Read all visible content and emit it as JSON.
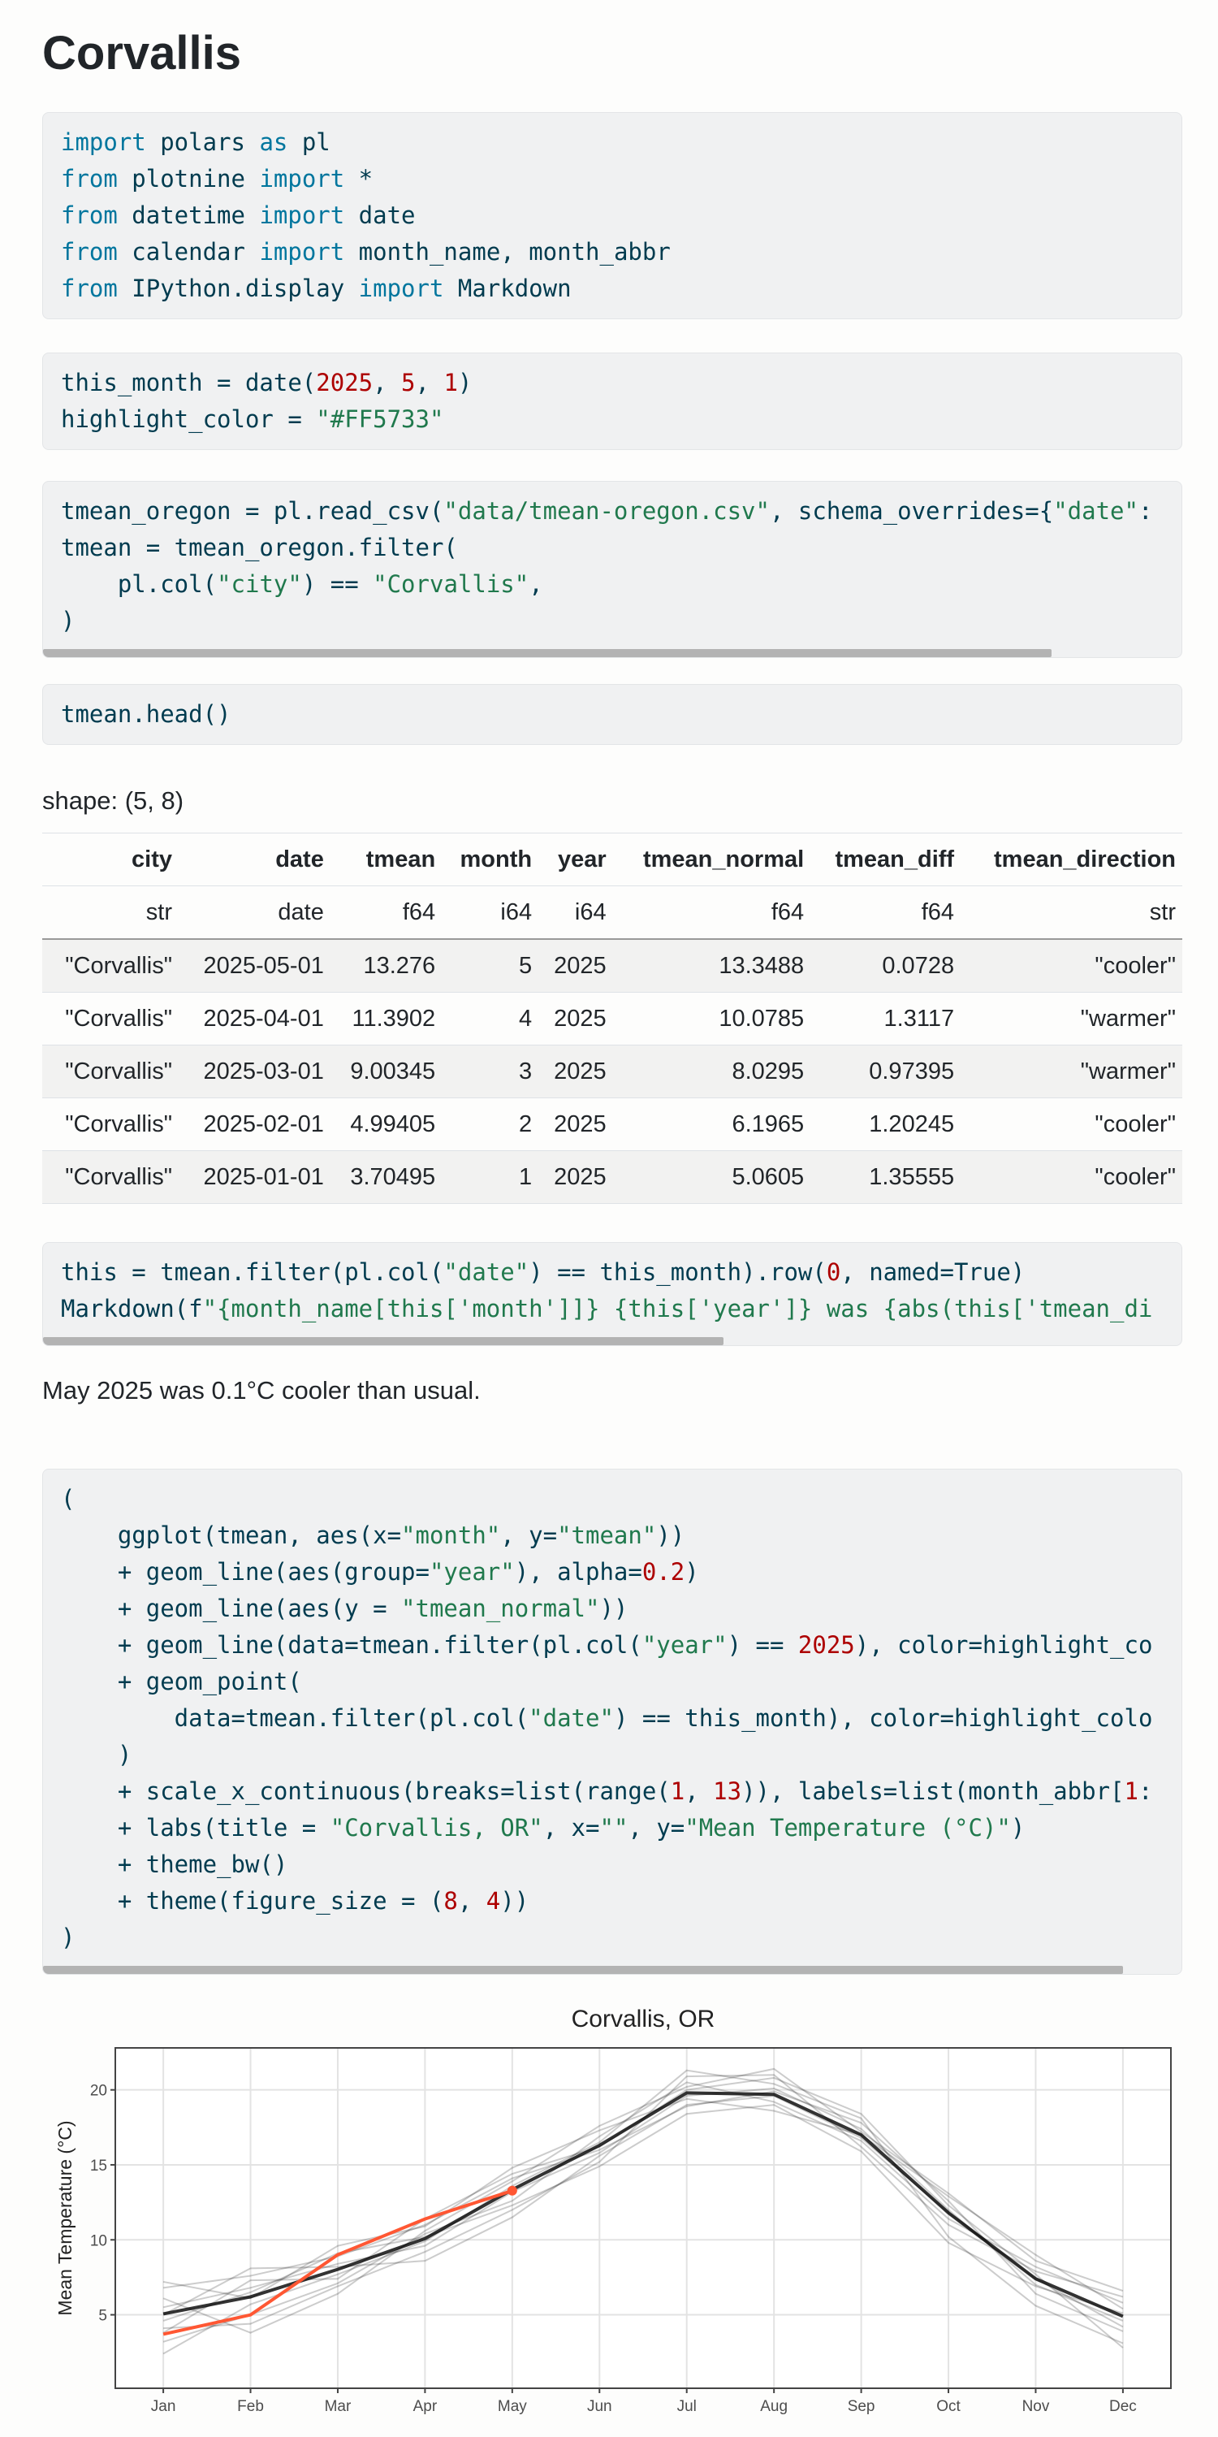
{
  "header": {
    "title": "Corvallis"
  },
  "code_blocks": [
    {
      "lines": [
        "import polars as pl",
        "from plotnine import *",
        "from datetime import date",
        "from calendar import month_name, month_abbr",
        "from IPython.display import Markdown"
      ]
    },
    {
      "lines": [
        "this_month = date(2025, 5, 1)",
        "highlight_color = \"#FF5733\""
      ]
    },
    {
      "lines": [
        "tmean_oregon = pl.read_csv(\"data/tmean-oregon.csv\", schema_overrides={\"date\":",
        "tmean = tmean_oregon.filter(",
        "    pl.col(\"city\") == \"Corvallis\",",
        ")"
      ]
    },
    {
      "lines": [
        "tmean.head()"
      ]
    },
    {
      "lines": [
        "this = tmean.filter(pl.col(\"date\") == this_month).row(0, named=True)",
        "Markdown(f\"{month_name[this['month']]} {this['year']} was {abs(this['tmean_di"
      ]
    },
    {
      "lines": [
        "(",
        "    ggplot(tmean, aes(x=\"month\", y=\"tmean\"))",
        "    + geom_line(aes(group=\"year\"), alpha=0.2)",
        "    + geom_line(aes(y = \"tmean_normal\"))",
        "    + geom_line(data=tmean.filter(pl.col(\"year\") == 2025), color=highlight_co",
        "    + geom_point(",
        "        data=tmean.filter(pl.col(\"date\") == this_month), color=highlight_colo",
        "    )",
        "    + scale_x_continuous(breaks=list(range(1, 13)), labels=list(month_abbr[1:",
        "    + labs(title = \"Corvallis, OR\", x=\"\", y=\"Mean Temperature (°C)\")",
        "    + theme_bw()",
        "    + theme(figure_size = (8, 4))",
        ")"
      ]
    }
  ],
  "table": {
    "shape": "shape: (5, 8)",
    "columns": [
      "city",
      "date",
      "tmean",
      "month",
      "year",
      "tmean_normal",
      "tmean_diff",
      "tmean_direction"
    ],
    "dtypes": [
      "str",
      "date",
      "f64",
      "i64",
      "i64",
      "f64",
      "f64",
      "str"
    ],
    "rows": [
      [
        "\"Corvallis\"",
        "2025-05-01",
        13.276,
        5,
        2025,
        13.3488,
        0.0728,
        "\"cooler\""
      ],
      [
        "\"Corvallis\"",
        "2025-04-01",
        11.3902,
        4,
        2025,
        10.0785,
        1.3117,
        "\"warmer\""
      ],
      [
        "\"Corvallis\"",
        "2025-03-01",
        9.00345,
        3,
        2025,
        8.0295,
        0.97395,
        "\"warmer\""
      ],
      [
        "\"Corvallis\"",
        "2025-02-01",
        4.99405,
        2,
        2025,
        6.1965,
        1.20245,
        "\"cooler\""
      ],
      [
        "\"Corvallis\"",
        "2025-01-01",
        3.70495,
        1,
        2025,
        5.0605,
        1.35555,
        "\"cooler\""
      ]
    ]
  },
  "summary": "May 2025 was 0.1°C cooler than usual.",
  "chart_data": {
    "type": "line",
    "title": "Corvallis, OR",
    "ylabel": "Mean Temperature (°C)",
    "x": [
      1,
      2,
      3,
      4,
      5,
      6,
      7,
      8,
      9,
      10,
      11,
      12
    ],
    "xlim": [
      0.45,
      12.55
    ],
    "xticks": [
      {
        "value": 1,
        "label": "Jan"
      },
      {
        "value": 2,
        "label": "Feb"
      },
      {
        "value": 3,
        "label": "Mar"
      },
      {
        "value": 4,
        "label": "Apr"
      },
      {
        "value": 5,
        "label": "May"
      },
      {
        "value": 6,
        "label": "Jun"
      },
      {
        "value": 7,
        "label": "Jul"
      },
      {
        "value": 8,
        "label": "Aug"
      },
      {
        "value": 9,
        "label": "Sep"
      },
      {
        "value": 10,
        "label": "Oct"
      },
      {
        "value": 11,
        "label": "Nov"
      },
      {
        "value": 12,
        "label": "Dec"
      }
    ],
    "ylim": [
      0.1,
      22.8
    ],
    "yticks": [
      5,
      10,
      15,
      20
    ],
    "grid": true,
    "series": [
      {
        "color": "#000000",
        "alpha": 0.2,
        "values": [
          5.5,
          6.8,
          8.4,
          9.6,
          13.2,
          15.8,
          19.6,
          20.1,
          17.4,
          12.0,
          7.0,
          4.6
        ]
      },
      {
        "color": "#000000",
        "alpha": 0.2,
        "values": [
          3.2,
          5.0,
          7.1,
          10.4,
          12.6,
          16.9,
          20.5,
          19.2,
          16.6,
          11.4,
          8.2,
          5.8
        ]
      },
      {
        "color": "#000000",
        "alpha": 0.2,
        "values": [
          6.8,
          7.6,
          8.9,
          11.0,
          14.1,
          16.0,
          18.9,
          19.9,
          17.8,
          12.6,
          6.4,
          3.9
        ]
      },
      {
        "color": "#000000",
        "alpha": 0.2,
        "values": [
          4.1,
          4.4,
          6.9,
          9.2,
          12.0,
          15.2,
          20.9,
          21.0,
          16.2,
          11.0,
          7.9,
          6.2
        ]
      },
      {
        "color": "#000000",
        "alpha": 0.2,
        "values": [
          7.2,
          6.1,
          9.6,
          10.9,
          14.8,
          17.3,
          19.4,
          18.6,
          17.0,
          12.9,
          9.0,
          5.4
        ]
      },
      {
        "color": "#000000",
        "alpha": 0.2,
        "values": [
          2.4,
          5.7,
          7.7,
          9.9,
          13.6,
          16.5,
          21.3,
          20.4,
          18.1,
          10.2,
          5.6,
          3.1
        ]
      },
      {
        "color": "#000000",
        "alpha": 0.2,
        "values": [
          5.0,
          8.1,
          8.2,
          8.6,
          11.5,
          15.6,
          19.0,
          19.6,
          16.8,
          11.8,
          7.4,
          4.2
        ]
      },
      {
        "color": "#000000",
        "alpha": 0.2,
        "values": [
          6.1,
          3.8,
          6.4,
          10.6,
          13.9,
          17.6,
          20.2,
          21.4,
          17.2,
          13.1,
          8.6,
          6.6
        ]
      },
      {
        "color": "#000000",
        "alpha": 0.2,
        "values": [
          4.6,
          6.5,
          9.1,
          10.2,
          12.3,
          14.9,
          18.4,
          19.0,
          15.9,
          9.8,
          6.9,
          5.1
        ]
      },
      {
        "color": "#000000",
        "alpha": 0.2,
        "values": [
          3.8,
          7.3,
          7.4,
          11.4,
          14.4,
          16.2,
          20.0,
          20.8,
          18.4,
          12.3,
          7.7,
          2.8
        ]
      },
      {
        "color": "#000000",
        "alpha": 0.8,
        "values": [
          5.0605,
          6.1965,
          8.0295,
          10.0785,
          13.3488,
          16.3,
          19.8,
          19.7,
          17.0,
          11.8,
          7.4,
          4.9
        ]
      },
      {
        "color": "#FF5733",
        "alpha": 1,
        "values": [
          3.70495,
          4.99405,
          9.00345,
          11.3902,
          13.276,
          null,
          null,
          null,
          null,
          null,
          null,
          null
        ]
      },
      {
        "color": "#FF5733",
        "alpha": 1,
        "kind": "point",
        "values": [
          null,
          null,
          null,
          null,
          13.276,
          null,
          null,
          null,
          null,
          null,
          null,
          null
        ]
      }
    ]
  }
}
